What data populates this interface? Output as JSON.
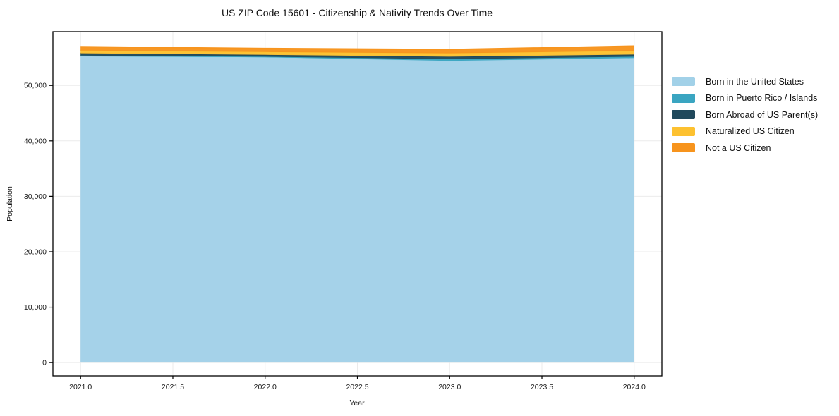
{
  "title": "US ZIP Code 15601 - Citizenship & Nativity Trends Over Time",
  "chart_data": {
    "type": "area",
    "stacked": true,
    "title": "US ZIP Code 15601 - Citizenship & Nativity Trends Over Time",
    "xlabel": "Year",
    "ylabel": "Population",
    "x": [
      2021,
      2022,
      2023,
      2024
    ],
    "series": [
      {
        "name": "Born in the United States",
        "color": "#a2d1e8",
        "values": [
          55250,
          55100,
          54450,
          54950
        ]
      },
      {
        "name": "Born in Puerto Rico / Islands",
        "color": "#3aa5c1",
        "values": [
          150,
          100,
          300,
          250
        ]
      },
      {
        "name": "Born Abroad of US Parent(s)",
        "color": "#20495c",
        "values": [
          400,
          320,
          450,
          380
        ]
      },
      {
        "name": "Naturalized US Citizen",
        "color": "#fdc130",
        "values": [
          500,
          510,
          600,
          640
        ]
      },
      {
        "name": "Not a US Citizen",
        "color": "#f7941d",
        "values": [
          700,
          640,
          680,
          890
        ]
      }
    ],
    "xlim": [
      2020.85,
      2024.15
    ],
    "ylim": [
      -2400,
      59700
    ],
    "x_tick_labels": [
      "2021.0",
      "2021.5",
      "2022.0",
      "2022.5",
      "2023.0",
      "2023.5",
      "2024.0"
    ],
    "x_tick_values": [
      2021,
      2021.5,
      2022,
      2022.5,
      2023,
      2023.5,
      2024
    ],
    "y_tick_labels": [
      "0",
      "10,000",
      "20,000",
      "30,000",
      "40,000",
      "50,000"
    ],
    "y_tick_values": [
      0,
      10000,
      20000,
      30000,
      40000,
      50000
    ],
    "grid": true,
    "legend_position": "right-outside"
  },
  "colors": {
    "grid": "#ebebeb",
    "axis": "#000000",
    "tick_text": "#1a1a1a",
    "background": "#ffffff"
  }
}
